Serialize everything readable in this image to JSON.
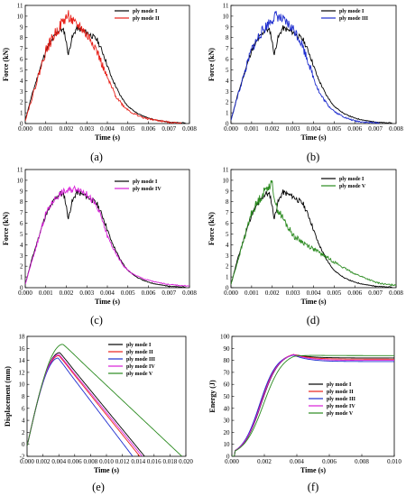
{
  "colors": {
    "ply_mode_I": "#000000",
    "ply_mode_II": "#e8221b",
    "ply_mode_III": "#1f2ecf",
    "ply_mode_IV": "#d81fd8",
    "ply_mode_V": "#2a8a1f"
  },
  "chart_data": [
    {
      "id": "a",
      "caption": "(a)",
      "type": "line",
      "xlabel": "Time (s)",
      "ylabel": "Force (kN)",
      "xlim": [
        0,
        0.008
      ],
      "ylim": [
        0,
        11
      ],
      "x_ticks": [
        "0.000",
        "0.001",
        "0.002",
        "0.003",
        "0.004",
        "0.005",
        "0.006",
        "0.007",
        "0.008"
      ],
      "y_ticks": [
        "0",
        "1",
        "2",
        "3",
        "4",
        "5",
        "6",
        "7",
        "8",
        "9",
        "10",
        "11"
      ],
      "legend_position": "top-right",
      "series": [
        {
          "name": "ply mode I",
          "color": "#000000",
          "noise": 0.25,
          "seed": 11,
          "points": [
            [
              0,
              0.3
            ],
            [
              0.0003,
              2.5
            ],
            [
              0.0007,
              5
            ],
            [
              0.001,
              6.8
            ],
            [
              0.0014,
              8.1
            ],
            [
              0.0017,
              8.8
            ],
            [
              0.0019,
              8.6
            ],
            [
              0.00205,
              7.0
            ],
            [
              0.0021,
              6.4
            ],
            [
              0.00225,
              7.8
            ],
            [
              0.0025,
              8.9
            ],
            [
              0.003,
              8.5
            ],
            [
              0.0035,
              7.8
            ],
            [
              0.0038,
              6.5
            ],
            [
              0.0042,
              4.3
            ],
            [
              0.0046,
              2.7
            ],
            [
              0.005,
              1.6
            ],
            [
              0.0055,
              0.9
            ],
            [
              0.006,
              0.5
            ],
            [
              0.0066,
              0.25
            ],
            [
              0.0072,
              0.1
            ],
            [
              0.0078,
              0.05
            ]
          ]
        },
        {
          "name": "ply mode II",
          "color": "#e8221b",
          "noise": 0.55,
          "seed": 22,
          "points": [
            [
              0,
              0.3
            ],
            [
              0.0003,
              2.2
            ],
            [
              0.0007,
              4.8
            ],
            [
              0.001,
              6.8
            ],
            [
              0.0014,
              8.2
            ],
            [
              0.0018,
              9.4
            ],
            [
              0.0021,
              10.1
            ],
            [
              0.0024,
              9.2
            ],
            [
              0.0027,
              9.0
            ],
            [
              0.003,
              8.2
            ],
            [
              0.0033,
              7.6
            ],
            [
              0.0036,
              6.2
            ],
            [
              0.004,
              4.2
            ],
            [
              0.0044,
              2.6
            ],
            [
              0.0048,
              1.6
            ],
            [
              0.0052,
              1.0
            ],
            [
              0.0058,
              0.5
            ],
            [
              0.0064,
              0.3
            ],
            [
              0.007,
              0.12
            ],
            [
              0.0076,
              0.05
            ]
          ]
        }
      ]
    },
    {
      "id": "b",
      "caption": "(b)",
      "type": "line",
      "xlabel": "Time (s)",
      "ylabel": "Force (kN)",
      "xlim": [
        0,
        0.008
      ],
      "ylim": [
        0,
        11
      ],
      "x_ticks": [
        "0.000",
        "0.001",
        "0.002",
        "0.003",
        "0.004",
        "0.005",
        "0.006",
        "0.007",
        "0.008"
      ],
      "y_ticks": [
        "0",
        "1",
        "2",
        "3",
        "4",
        "5",
        "6",
        "7",
        "8",
        "9",
        "10",
        "11"
      ],
      "legend_position": "top-right",
      "series": [
        {
          "name": "ply mode I",
          "color": "#000000",
          "noise": 0.25,
          "seed": 11,
          "points": [
            [
              0,
              0.3
            ],
            [
              0.0003,
              2.5
            ],
            [
              0.0007,
              5
            ],
            [
              0.001,
              6.8
            ],
            [
              0.0014,
              8.1
            ],
            [
              0.0017,
              8.8
            ],
            [
              0.0019,
              8.6
            ],
            [
              0.00205,
              7.0
            ],
            [
              0.0021,
              6.4
            ],
            [
              0.00225,
              7.8
            ],
            [
              0.0025,
              8.9
            ],
            [
              0.003,
              8.5
            ],
            [
              0.0035,
              7.8
            ],
            [
              0.0038,
              6.5
            ],
            [
              0.0042,
              4.3
            ],
            [
              0.0046,
              2.7
            ],
            [
              0.005,
              1.6
            ],
            [
              0.0055,
              0.9
            ],
            [
              0.006,
              0.5
            ],
            [
              0.0066,
              0.25
            ],
            [
              0.0072,
              0.1
            ],
            [
              0.0078,
              0.05
            ]
          ]
        },
        {
          "name": "ply mode III",
          "color": "#1f2ecf",
          "noise": 0.5,
          "seed": 33,
          "points": [
            [
              0,
              0.3
            ],
            [
              0.0003,
              2.4
            ],
            [
              0.0007,
              5.0
            ],
            [
              0.001,
              6.9
            ],
            [
              0.0014,
              8.3
            ],
            [
              0.0018,
              9.3
            ],
            [
              0.0022,
              10.1
            ],
            [
              0.0025,
              9.6
            ],
            [
              0.0028,
              9.2
            ],
            [
              0.0031,
              8.6
            ],
            [
              0.0034,
              7.6
            ],
            [
              0.0037,
              6.0
            ],
            [
              0.004,
              4.3
            ],
            [
              0.0043,
              2.8
            ],
            [
              0.0047,
              1.7
            ],
            [
              0.0051,
              1.0
            ],
            [
              0.0056,
              0.5
            ],
            [
              0.006,
              0.25
            ],
            [
              0.0066,
              0.1
            ],
            [
              0.0072,
              0.05
            ]
          ]
        }
      ]
    },
    {
      "id": "c",
      "caption": "(c)",
      "type": "line",
      "xlabel": "Time (s)",
      "ylabel": "Force (kN)",
      "xlim": [
        0,
        0.008
      ],
      "ylim": [
        0,
        11
      ],
      "x_ticks": [
        "0.000",
        "0.001",
        "0.002",
        "0.003",
        "0.004",
        "0.005",
        "0.006",
        "0.007",
        "0.008"
      ],
      "y_ticks": [
        "0",
        "1",
        "2",
        "3",
        "4",
        "5",
        "6",
        "7",
        "8",
        "9",
        "10",
        "11"
      ],
      "legend_position": "top-right",
      "series": [
        {
          "name": "ply mode I",
          "color": "#000000",
          "noise": 0.25,
          "seed": 11,
          "points": [
            [
              0,
              0.3
            ],
            [
              0.0003,
              2.5
            ],
            [
              0.0007,
              5
            ],
            [
              0.001,
              6.8
            ],
            [
              0.0014,
              8.1
            ],
            [
              0.0017,
              8.8
            ],
            [
              0.0019,
              8.6
            ],
            [
              0.00205,
              7.0
            ],
            [
              0.0021,
              6.4
            ],
            [
              0.00225,
              7.8
            ],
            [
              0.0025,
              8.9
            ],
            [
              0.003,
              8.5
            ],
            [
              0.0035,
              7.8
            ],
            [
              0.0038,
              6.5
            ],
            [
              0.0042,
              4.3
            ],
            [
              0.0046,
              2.7
            ],
            [
              0.005,
              1.6
            ],
            [
              0.0055,
              0.9
            ],
            [
              0.006,
              0.5
            ],
            [
              0.0066,
              0.25
            ],
            [
              0.0072,
              0.1
            ],
            [
              0.0078,
              0.05
            ]
          ]
        },
        {
          "name": "ply mode IV",
          "color": "#d81fd8",
          "noise": 0.3,
          "seed": 44,
          "points": [
            [
              0,
              0.3
            ],
            [
              0.0003,
              2.3
            ],
            [
              0.0007,
              4.9
            ],
            [
              0.001,
              6.9
            ],
            [
              0.0014,
              8.2
            ],
            [
              0.0018,
              8.9
            ],
            [
              0.0022,
              9.1
            ],
            [
              0.0025,
              9.3
            ],
            [
              0.0028,
              9.0
            ],
            [
              0.0031,
              8.5
            ],
            [
              0.0034,
              7.8
            ],
            [
              0.0037,
              6.6
            ],
            [
              0.004,
              4.8
            ],
            [
              0.0044,
              3.2
            ],
            [
              0.0048,
              2.0
            ],
            [
              0.0052,
              1.3
            ],
            [
              0.0058,
              0.8
            ],
            [
              0.0064,
              0.5
            ],
            [
              0.007,
              0.3
            ],
            [
              0.0076,
              0.2
            ],
            [
              0.008,
              0.15
            ]
          ]
        }
      ]
    },
    {
      "id": "d",
      "caption": "(d)",
      "type": "line",
      "xlabel": "Time (s)",
      "ylabel": "Force (kN)",
      "xlim": [
        0,
        0.008
      ],
      "ylim": [
        0,
        11
      ],
      "x_ticks": [
        "0.000",
        "0.001",
        "0.002",
        "0.003",
        "0.004",
        "0.005",
        "0.006",
        "0.007",
        "0.008"
      ],
      "y_ticks": [
        "0",
        "1",
        "2",
        "3",
        "4",
        "5",
        "6",
        "7",
        "8",
        "9",
        "10",
        "11"
      ],
      "legend_position": "top-right",
      "series": [
        {
          "name": "ply mode I",
          "color": "#000000",
          "noise": 0.25,
          "seed": 11,
          "points": [
            [
              0,
              0.3
            ],
            [
              0.0003,
              2.5
            ],
            [
              0.0007,
              5
            ],
            [
              0.001,
              6.8
            ],
            [
              0.0014,
              8.1
            ],
            [
              0.0017,
              8.8
            ],
            [
              0.0019,
              8.6
            ],
            [
              0.00205,
              7.0
            ],
            [
              0.0021,
              6.4
            ],
            [
              0.00225,
              7.8
            ],
            [
              0.0025,
              8.9
            ],
            [
              0.003,
              8.5
            ],
            [
              0.0035,
              7.8
            ],
            [
              0.0038,
              6.5
            ],
            [
              0.0042,
              4.3
            ],
            [
              0.0046,
              2.7
            ],
            [
              0.005,
              1.6
            ],
            [
              0.0055,
              0.9
            ],
            [
              0.006,
              0.5
            ],
            [
              0.0066,
              0.25
            ],
            [
              0.0072,
              0.1
            ],
            [
              0.0078,
              0.05
            ]
          ]
        },
        {
          "name": "ply mode V",
          "color": "#2a8a1f",
          "noise": 0.45,
          "seed": 55,
          "points": [
            [
              0,
              0.3
            ],
            [
              0.0003,
              2.3
            ],
            [
              0.0007,
              5.0
            ],
            [
              0.001,
              7.0
            ],
            [
              0.0014,
              8.3
            ],
            [
              0.0018,
              9.5
            ],
            [
              0.002,
              9.6
            ],
            [
              0.0022,
              7.5
            ],
            [
              0.0025,
              6.5
            ],
            [
              0.0028,
              5.5
            ],
            [
              0.0031,
              4.7
            ],
            [
              0.0035,
              4.2
            ],
            [
              0.004,
              3.6
            ],
            [
              0.0045,
              3.0
            ],
            [
              0.005,
              2.4
            ],
            [
              0.0055,
              1.8
            ],
            [
              0.006,
              1.3
            ],
            [
              0.0065,
              0.9
            ],
            [
              0.007,
              0.5
            ],
            [
              0.0075,
              0.3
            ],
            [
              0.008,
              0.25
            ]
          ]
        }
      ]
    },
    {
      "id": "e",
      "caption": "(e)",
      "type": "line",
      "xlabel": "Time (s)",
      "ylabel": "Displacement (mm)",
      "xlim": [
        0,
        0.02
      ],
      "ylim": [
        -2,
        18
      ],
      "x_ticks": [
        "0.000",
        "0.002",
        "0.004",
        "0.006",
        "0.008",
        "0.010",
        "0.012",
        "0.014",
        "0.016",
        "0.018",
        "0.020"
      ],
      "y_ticks": [
        "-2",
        "0",
        "2",
        "4",
        "6",
        "8",
        "10",
        "12",
        "14",
        "16",
        "18"
      ],
      "legend_position": "top-right",
      "series": [
        {
          "name": "ply mode I",
          "color": "#000000",
          "peak_x": 0.0041,
          "peak_y": 15.3,
          "end_x": 0.0148
        },
        {
          "name": "ply mode II",
          "color": "#e8221b",
          "peak_x": 0.004,
          "peak_y": 14.8,
          "end_x": 0.0142
        },
        {
          "name": "ply mode III",
          "color": "#1f2ecf",
          "peak_x": 0.0039,
          "peak_y": 14.4,
          "end_x": 0.0133
        },
        {
          "name": "ply mode IV",
          "color": "#d81fd8",
          "peak_x": 0.004,
          "peak_y": 15.0,
          "end_x": 0.0145
        },
        {
          "name": "ply mode V",
          "color": "#2a8a1f",
          "peak_x": 0.0045,
          "peak_y": 16.7,
          "end_x": 0.0195
        }
      ]
    },
    {
      "id": "f",
      "caption": "(f)",
      "type": "line",
      "xlabel": "Time (s)",
      "ylabel": "Energy (J)",
      "xlim": [
        0,
        0.01
      ],
      "ylim": [
        0,
        100
      ],
      "x_ticks": [
        "0.000",
        "0.002",
        "0.004",
        "0.006",
        "0.008",
        "0.010"
      ],
      "y_ticks": [
        "0",
        "10",
        "20",
        "30",
        "40",
        "50",
        "60",
        "70",
        "80",
        "90",
        "100"
      ],
      "legend_position": "right",
      "series": [
        {
          "name": "ply mode I",
          "color": "#000000",
          "t_mid": 0.0018,
          "k": 0.00055,
          "peak": 87,
          "final": 82
        },
        {
          "name": "ply mode II",
          "color": "#e8221b",
          "t_mid": 0.00175,
          "k": 0.00055,
          "peak": 87,
          "final": 81
        },
        {
          "name": "ply mode III",
          "color": "#1f2ecf",
          "t_mid": 0.0017,
          "k": 0.00053,
          "peak": 86,
          "final": 79
        },
        {
          "name": "ply mode IV",
          "color": "#d81fd8",
          "t_mid": 0.00178,
          "k": 0.00055,
          "peak": 87,
          "final": 80
        },
        {
          "name": "ply mode V",
          "color": "#2a8a1f",
          "t_mid": 0.00195,
          "k": 0.0006,
          "peak": 87,
          "final": 84
        }
      ]
    }
  ]
}
